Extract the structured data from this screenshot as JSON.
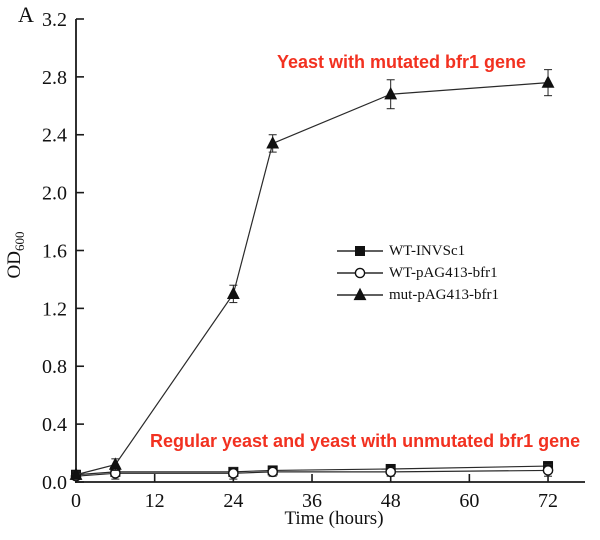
{
  "panel_label": "A",
  "annotations": {
    "top": {
      "text": "Yeast with mutated bfr1 gene",
      "color": "#f23120"
    },
    "bottom": {
      "text": "Regular yeast and yeast with unmutated bfr1 gene",
      "color": "#f23120"
    }
  },
  "chart_data": {
    "type": "line",
    "title": "",
    "xlabel": "Time (hours)",
    "ylabel": "OD",
    "ylabel_sub": "600",
    "xlim": [
      0,
      77.5
    ],
    "ylim": [
      0,
      3.2
    ],
    "grid": false,
    "legend_position": "center-right",
    "x_ticks": [
      0,
      12,
      24,
      36,
      48,
      60,
      72
    ],
    "y_ticks": [
      "0.0",
      "0.4",
      "0.8",
      "1.2",
      "1.6",
      "2.0",
      "2.4",
      "2.8",
      "3.2"
    ],
    "x": [
      0,
      6,
      24,
      30,
      48,
      72
    ],
    "series": [
      {
        "name": "WT-INVSc1",
        "marker": "square",
        "marker_fill": "#111111",
        "values": [
          0.05,
          0.07,
          0.07,
          0.08,
          0.09,
          0.11
        ],
        "errors": [
          0.03,
          0.02,
          0.02,
          0.02,
          0.02,
          0.03
        ]
      },
      {
        "name": "WT-pAG413-bfr1",
        "marker": "circle",
        "marker_fill": "#ffffff",
        "values": [
          0.04,
          0.06,
          0.06,
          0.07,
          0.07,
          0.08
        ],
        "errors": [
          0.02,
          0.04,
          0.04,
          0.03,
          0.03,
          0.04
        ]
      },
      {
        "name": "mut-pAG413-bfr1",
        "marker": "triangle",
        "marker_fill": "#111111",
        "values": [
          0.05,
          0.12,
          1.3,
          2.34,
          2.68,
          2.76
        ],
        "errors": [
          0.02,
          0.04,
          0.06,
          0.06,
          0.1,
          0.09
        ]
      }
    ],
    "line_color": "#2a2a2a",
    "axis_color": "#1a1a1a"
  }
}
